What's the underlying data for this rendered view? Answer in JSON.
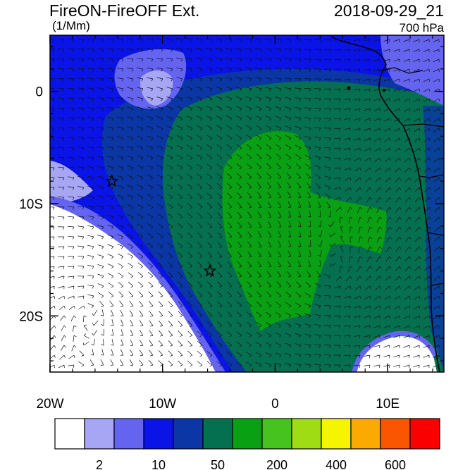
{
  "header": {
    "title": "FireON-FireOFF Ext.",
    "datetime": "2018-09-29_21",
    "units": "(1/Mm)",
    "level": "700 hPa"
  },
  "map": {
    "lon_range": [
      -20,
      15
    ],
    "lat_range": [
      -25,
      5
    ],
    "x_ticks": [
      {
        "value": -20,
        "label": "20W"
      },
      {
        "value": -10,
        "label": "10W"
      },
      {
        "value": 0,
        "label": "0"
      },
      {
        "value": 10,
        "label": "10E"
      }
    ],
    "y_ticks": [
      {
        "value": 0,
        "label": "0"
      },
      {
        "value": -10,
        "label": "10S"
      },
      {
        "value": -20,
        "label": "20S"
      }
    ],
    "markers": [
      {
        "name": "star",
        "lon": -14.5,
        "lat": -8
      },
      {
        "name": "star",
        "lon": -5.8,
        "lat": -16
      }
    ],
    "vectors": "wind barbs"
  },
  "colorbar": {
    "colors": [
      "#ffffff",
      "#a6a6f5",
      "#6464f0",
      "#0a14e6",
      "#0a37a5",
      "#057050",
      "#0aa014",
      "#46c31e",
      "#a0dc14",
      "#f5f500",
      "#faaa00",
      "#fa5500",
      "#fa0000"
    ],
    "labels": [
      {
        "boundary": 1,
        "text": "2"
      },
      {
        "boundary": 3,
        "text": "10"
      },
      {
        "boundary": 5,
        "text": "50"
      },
      {
        "boundary": 7,
        "text": "200"
      },
      {
        "boundary": 9,
        "text": "400"
      },
      {
        "boundary": 11,
        "text": "600"
      }
    ]
  }
}
